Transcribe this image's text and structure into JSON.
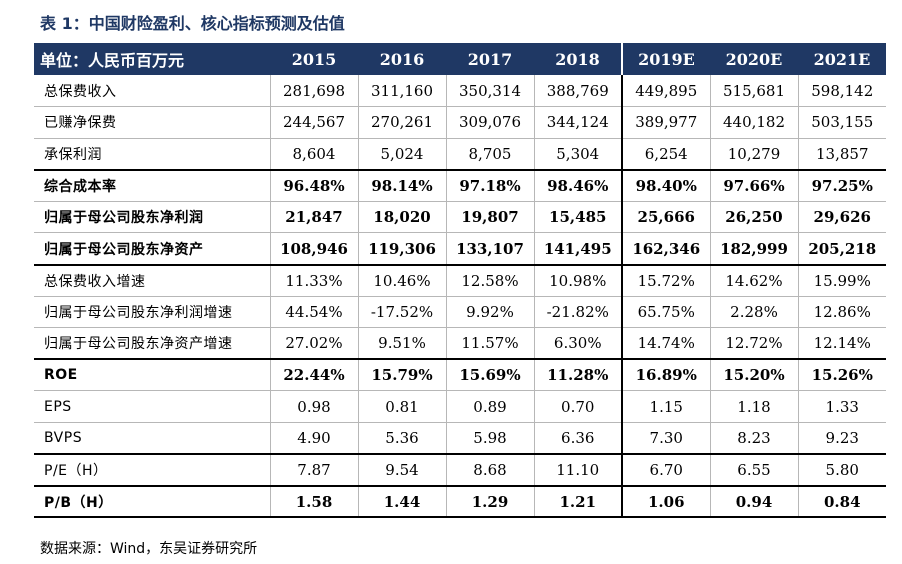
{
  "caption": "表 1：中国财险盈利、核心指标预测及估值",
  "header": {
    "unit_label": "单位：人民币百万元",
    "years": [
      "2015",
      "2016",
      "2017",
      "2018",
      "2019E",
      "2020E",
      "2021E"
    ]
  },
  "rows": [
    {
      "label": "总保费收入",
      "values": [
        "281,698",
        "311,160",
        "350,314",
        "388,769",
        "449,895",
        "515,681",
        "598,142"
      ]
    },
    {
      "label": "已赚净保费",
      "values": [
        "244,567",
        "270,261",
        "309,076",
        "344,124",
        "389,977",
        "440,182",
        "503,155"
      ]
    },
    {
      "label": "承保利润",
      "values": [
        "8,604",
        "5,024",
        "8,705",
        "5,304",
        "6,254",
        "10,279",
        "13,857"
      ]
    },
    {
      "label": "综合成本率",
      "values": [
        "96.48%",
        "98.14%",
        "97.18%",
        "98.46%",
        "98.40%",
        "97.66%",
        "97.25%"
      ]
    },
    {
      "label": "归属于母公司股东净利润",
      "values": [
        "21,847",
        "18,020",
        "19,807",
        "15,485",
        "25,666",
        "26,250",
        "29,626"
      ]
    },
    {
      "label": "归属于母公司股东净资产",
      "values": [
        "108,946",
        "119,306",
        "133,107",
        "141,495",
        "162,346",
        "182,999",
        "205,218"
      ]
    },
    {
      "label": "总保费收入增速",
      "values": [
        "11.33%",
        "10.46%",
        "12.58%",
        "10.98%",
        "15.72%",
        "14.62%",
        "15.99%"
      ]
    },
    {
      "label": "归属于母公司股东净利润增速",
      "values": [
        "44.54%",
        "-17.52%",
        "9.92%",
        "-21.82%",
        "65.75%",
        "2.28%",
        "12.86%"
      ]
    },
    {
      "label": "归属于母公司股东净资产增速",
      "values": [
        "27.02%",
        "9.51%",
        "11.57%",
        "6.30%",
        "14.74%",
        "12.72%",
        "12.14%"
      ]
    },
    {
      "label": "ROE",
      "values": [
        "22.44%",
        "15.79%",
        "15.69%",
        "11.28%",
        "16.89%",
        "15.20%",
        "15.26%"
      ]
    },
    {
      "label": "EPS",
      "values": [
        "0.98",
        "0.81",
        "0.89",
        "0.70",
        "1.15",
        "1.18",
        "1.33"
      ]
    },
    {
      "label": "BVPS",
      "values": [
        "4.90",
        "5.36",
        "5.98",
        "6.36",
        "7.30",
        "8.23",
        "9.23"
      ]
    },
    {
      "label": "P/E（H）",
      "values": [
        "7.87",
        "9.54",
        "8.68",
        "11.10",
        "6.70",
        "6.55",
        "5.80"
      ]
    },
    {
      "label": "P/B（H）",
      "values": [
        "1.58",
        "1.44",
        "1.29",
        "1.21",
        "1.06",
        "0.94",
        "0.84"
      ]
    }
  ],
  "source": "数据来源：Wind，东吴证券研究所"
}
